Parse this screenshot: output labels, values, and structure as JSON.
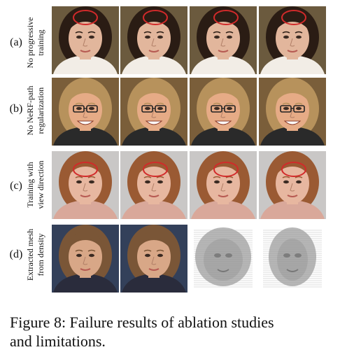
{
  "rows": [
    {
      "letter": "(a)",
      "label": [
        "No progressive",
        "training"
      ],
      "palette": {
        "bg": "#6b5a3e",
        "skin": "#e2b69c",
        "hair": "#2a1c14",
        "shirt": "#f2ede6"
      },
      "ellipse": true
    },
    {
      "letter": "(b)",
      "label": [
        "No NeRF-path",
        "regularization"
      ],
      "palette": {
        "bg": "#7a5e3a",
        "skin": "#e6ab86",
        "hair": "#b7925c",
        "shirt": "#2a2a2a"
      },
      "ellipse": false,
      "glasses": true
    },
    {
      "letter": "(c)",
      "label": [
        "Training with",
        "view direction"
      ],
      "palette": {
        "bg": "#c9c7c6",
        "skin": "#e7b7a0",
        "hair": "#9a5a33",
        "shirt": "#d9a89a"
      },
      "ellipse": true
    },
    {
      "letter": "(d)",
      "label": [
        "Extracted mesh",
        "from density"
      ],
      "palette": {
        "bg": "#33405a",
        "skin": "#d8a787",
        "hair": "#7a5637",
        "shirt": "#2a2c3c"
      },
      "ellipse": false,
      "mesh": true
    }
  ],
  "caption": {
    "line1": "Figure 8: Failure results of ablation studies",
    "line2": "and limitations."
  },
  "colors": {
    "ellipse": "#d22a2a",
    "mesh": "#b8b8b8"
  }
}
